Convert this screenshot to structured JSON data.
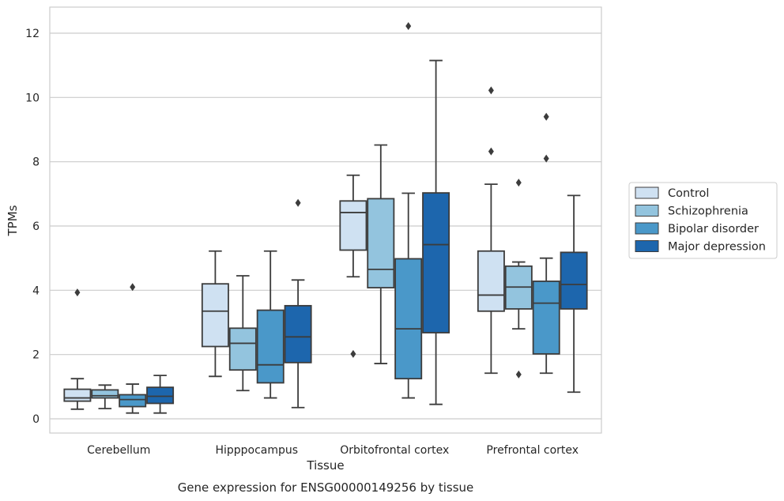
{
  "chart_data": {
    "type": "box",
    "title": "",
    "caption": "Gene expression for ENSG00000149256 by tissue",
    "xlabel": "Tissue",
    "ylabel": "TPMs",
    "ylim": [
      -0.4,
      12.8
    ],
    "yticks": [
      0,
      2,
      4,
      6,
      8,
      10,
      12
    ],
    "grid": "horizontal",
    "legend_position": "right-outside",
    "categories": [
      "Cerebellum",
      "Hipppocampus",
      "Orbitofrontal cortex",
      "Prefrontal cortex"
    ],
    "series": [
      {
        "name": "Control",
        "color": "#cfe1f2",
        "boxes": [
          {
            "whislo": 0.3,
            "q1": 0.55,
            "med": 0.65,
            "q3": 0.92,
            "whishi": 1.25,
            "fliers": [
              3.93
            ]
          },
          {
            "whislo": 1.32,
            "q1": 2.25,
            "med": 3.35,
            "q3": 4.2,
            "whishi": 5.22,
            "fliers": []
          },
          {
            "whislo": 4.42,
            "q1": 5.25,
            "med": 6.42,
            "q3": 6.78,
            "whishi": 7.58,
            "fliers": [
              2.02
            ]
          },
          {
            "whislo": 1.42,
            "q1": 3.35,
            "med": 3.85,
            "q3": 5.22,
            "whishi": 7.3,
            "fliers": [
              8.32,
              10.22
            ]
          }
        ]
      },
      {
        "name": "Schizophrenia",
        "color": "#93c4de",
        "boxes": [
          {
            "whislo": 0.32,
            "q1": 0.65,
            "med": 0.72,
            "q3": 0.9,
            "whishi": 1.05,
            "fliers": []
          },
          {
            "whislo": 0.88,
            "q1": 1.52,
            "med": 2.35,
            "q3": 2.82,
            "whishi": 4.45,
            "fliers": []
          },
          {
            "whislo": 1.72,
            "q1": 4.08,
            "med": 4.65,
            "q3": 6.85,
            "whishi": 8.52,
            "fliers": []
          },
          {
            "whislo": 2.8,
            "q1": 3.42,
            "med": 4.1,
            "q3": 4.75,
            "whishi": 4.88,
            "fliers": [
              1.38,
              7.35
            ]
          }
        ]
      },
      {
        "name": "Bipolar disorder",
        "color": "#4a98c9",
        "boxes": [
          {
            "whislo": 0.18,
            "q1": 0.38,
            "med": 0.6,
            "q3": 0.75,
            "whishi": 1.08,
            "fliers": [
              4.1
            ]
          },
          {
            "whislo": 0.65,
            "q1": 1.12,
            "med": 1.68,
            "q3": 3.38,
            "whishi": 5.22,
            "fliers": []
          },
          {
            "whislo": 0.65,
            "q1": 1.25,
            "med": 2.8,
            "q3": 4.98,
            "whishi": 7.02,
            "fliers": [
              12.22
            ]
          },
          {
            "whislo": 1.42,
            "q1": 2.02,
            "med": 3.6,
            "q3": 4.28,
            "whishi": 5.0,
            "fliers": [
              8.1,
              9.4
            ]
          }
        ]
      },
      {
        "name": "Major depression",
        "color": "#1d66ad",
        "boxes": [
          {
            "whislo": 0.18,
            "q1": 0.48,
            "med": 0.7,
            "q3": 0.98,
            "whishi": 1.35,
            "fliers": []
          },
          {
            "whislo": 0.35,
            "q1": 1.75,
            "med": 2.55,
            "q3": 3.52,
            "whishi": 4.32,
            "fliers": [
              6.72
            ]
          },
          {
            "whislo": 0.45,
            "q1": 2.68,
            "med": 5.42,
            "q3": 7.03,
            "whishi": 11.15,
            "fliers": []
          },
          {
            "whislo": 0.83,
            "q1": 3.42,
            "med": 4.18,
            "q3": 5.18,
            "whishi": 6.95,
            "fliers": []
          }
        ]
      }
    ]
  }
}
